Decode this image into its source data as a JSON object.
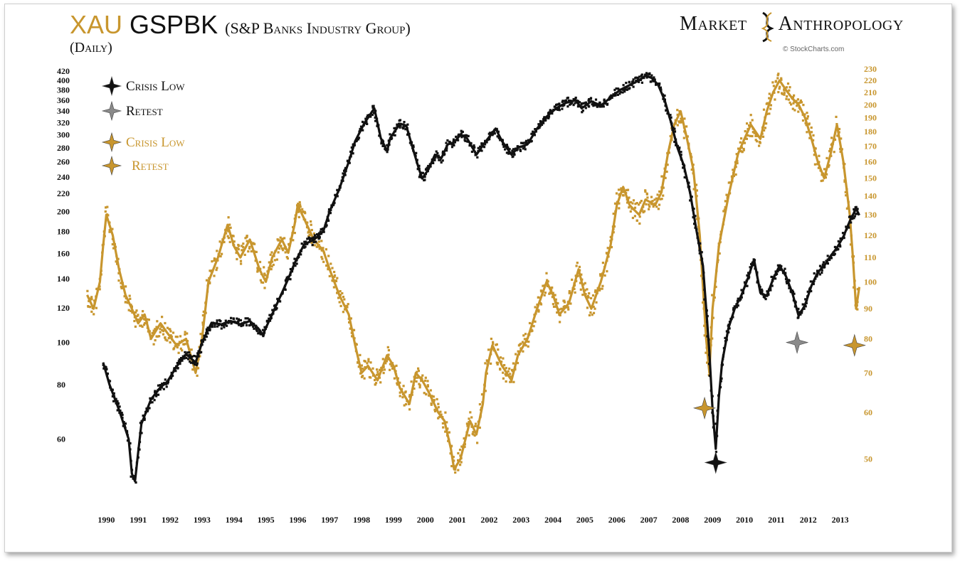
{
  "header": {
    "title_part1": "XAU",
    "title_part2": "GSPBK",
    "title_sub": "(S&P Banks Industry Group)",
    "frequency": "(Daily)",
    "brand_part1": "Market",
    "brand_part2": "Anthropology",
    "copyright": "© StockCharts.com"
  },
  "colors": {
    "gspbk": "#111111",
    "xau": "#c8962e",
    "retest_black": "#8a8a8a"
  },
  "legend": [
    {
      "label": "Crisis Low",
      "series": "GSPBK",
      "color": "#111111"
    },
    {
      "label": "Retest",
      "series": "GSPBK",
      "color": "#8a8a8a"
    },
    {
      "label": "Crisis Low",
      "series": "XAU",
      "color": "#c8962e"
    },
    {
      "label": "Retest",
      "series": "XAU",
      "color": "#c8962e"
    }
  ],
  "chart_data": {
    "type": "scatter",
    "x_axis": {
      "ticks": [
        "1990",
        "1991",
        "1992",
        "1993",
        "1994",
        "1995",
        "1996",
        "1997",
        "1998",
        "1999",
        "2000",
        "2001",
        "2002",
        "2003",
        "2004",
        "2005",
        "2006",
        "2007",
        "2008",
        "2009",
        "2010",
        "2011",
        "2012",
        "2013"
      ],
      "range": [
        1989.4,
        2013.8
      ]
    },
    "y_left": {
      "scale": "log",
      "range": [
        44,
        420
      ],
      "ticks": [
        60,
        80,
        100,
        120,
        140,
        160,
        180,
        200,
        220,
        240,
        260,
        280,
        300,
        320,
        340,
        360,
        380,
        400,
        420
      ]
    },
    "y_right": {
      "scale": "log",
      "range": [
        42,
        232
      ],
      "ticks": [
        50,
        60,
        70,
        80,
        90,
        100,
        110,
        120,
        130,
        140,
        150,
        160,
        170,
        180,
        190,
        200,
        210,
        220,
        230
      ]
    },
    "series": [
      {
        "name": "GSPBK",
        "axis": "left",
        "points": [
          [
            1990.0,
            90
          ],
          [
            1990.2,
            80
          ],
          [
            1990.5,
            70
          ],
          [
            1990.8,
            60
          ],
          [
            1990.9,
            50
          ],
          [
            1991.0,
            48
          ],
          [
            1991.1,
            56
          ],
          [
            1991.2,
            65
          ],
          [
            1991.5,
            74
          ],
          [
            1991.8,
            79
          ],
          [
            1992.0,
            81
          ],
          [
            1992.3,
            88
          ],
          [
            1992.6,
            94
          ],
          [
            1992.9,
            90
          ],
          [
            1993.1,
            100
          ],
          [
            1993.4,
            111
          ],
          [
            1993.7,
            110
          ],
          [
            1994.0,
            112
          ],
          [
            1994.3,
            110
          ],
          [
            1994.6,
            112
          ],
          [
            1994.9,
            107
          ],
          [
            1995.0,
            104
          ],
          [
            1995.2,
            112
          ],
          [
            1995.5,
            125
          ],
          [
            1995.8,
            140
          ],
          [
            1996.0,
            152
          ],
          [
            1996.3,
            168
          ],
          [
            1996.6,
            172
          ],
          [
            1996.9,
            180
          ],
          [
            1997.1,
            200
          ],
          [
            1997.4,
            225
          ],
          [
            1997.7,
            260
          ],
          [
            1997.9,
            290
          ],
          [
            1998.2,
            320
          ],
          [
            1998.5,
            345
          ],
          [
            1998.7,
            295
          ],
          [
            1998.9,
            275
          ],
          [
            1999.0,
            295
          ],
          [
            1999.3,
            318
          ],
          [
            1999.5,
            315
          ],
          [
            1999.7,
            280
          ],
          [
            1999.9,
            250
          ],
          [
            2000.0,
            238
          ],
          [
            2000.2,
            250
          ],
          [
            2000.4,
            270
          ],
          [
            2000.6,
            265
          ],
          [
            2000.8,
            285
          ],
          [
            2001.0,
            288
          ],
          [
            2001.2,
            300
          ],
          [
            2001.4,
            295
          ],
          [
            2001.7,
            270
          ],
          [
            2002.0,
            290
          ],
          [
            2002.3,
            310
          ],
          [
            2002.5,
            290
          ],
          [
            2002.8,
            270
          ],
          [
            2003.0,
            280
          ],
          [
            2003.3,
            285
          ],
          [
            2003.6,
            310
          ],
          [
            2003.9,
            330
          ],
          [
            2004.2,
            345
          ],
          [
            2004.5,
            355
          ],
          [
            2004.8,
            360
          ],
          [
            2005.0,
            345
          ],
          [
            2005.3,
            358
          ],
          [
            2005.6,
            350
          ],
          [
            2005.9,
            365
          ],
          [
            2006.2,
            380
          ],
          [
            2006.5,
            390
          ],
          [
            2006.8,
            400
          ],
          [
            2007.0,
            410
          ],
          [
            2007.2,
            405
          ],
          [
            2007.4,
            390
          ],
          [
            2007.6,
            360
          ],
          [
            2007.8,
            320
          ],
          [
            2008.0,
            280
          ],
          [
            2008.2,
            255
          ],
          [
            2008.4,
            220
          ],
          [
            2008.6,
            180
          ],
          [
            2008.8,
            150
          ],
          [
            2008.9,
            120
          ],
          [
            2009.0,
            95
          ],
          [
            2009.1,
            70
          ],
          [
            2009.2,
            57
          ],
          [
            2009.3,
            75
          ],
          [
            2009.4,
            90
          ],
          [
            2009.6,
            108
          ],
          [
            2009.8,
            120
          ],
          [
            2010.0,
            128
          ],
          [
            2010.2,
            140
          ],
          [
            2010.4,
            155
          ],
          [
            2010.6,
            130
          ],
          [
            2010.8,
            128
          ],
          [
            2011.0,
            140
          ],
          [
            2011.2,
            150
          ],
          [
            2011.4,
            142
          ],
          [
            2011.6,
            130
          ],
          [
            2011.8,
            115
          ],
          [
            2012.0,
            122
          ],
          [
            2012.2,
            135
          ],
          [
            2012.4,
            145
          ],
          [
            2012.6,
            150
          ],
          [
            2012.8,
            158
          ],
          [
            2013.0,
            165
          ],
          [
            2013.2,
            175
          ],
          [
            2013.4,
            190
          ],
          [
            2013.6,
            203
          ],
          [
            2013.7,
            196
          ]
        ]
      },
      {
        "name": "XAU",
        "axis": "right",
        "points": [
          [
            1989.5,
            95
          ],
          [
            1989.7,
            90
          ],
          [
            1989.9,
            100
          ],
          [
            1990.0,
            115
          ],
          [
            1990.1,
            130
          ],
          [
            1990.3,
            120
          ],
          [
            1990.5,
            105
          ],
          [
            1990.7,
            95
          ],
          [
            1990.9,
            90
          ],
          [
            1991.1,
            85
          ],
          [
            1991.3,
            88
          ],
          [
            1991.5,
            80
          ],
          [
            1991.8,
            85
          ],
          [
            1992.0,
            82
          ],
          [
            1992.3,
            78
          ],
          [
            1992.6,
            80
          ],
          [
            1992.9,
            70
          ],
          [
            1993.1,
            80
          ],
          [
            1993.3,
            100
          ],
          [
            1993.6,
            110
          ],
          [
            1993.9,
            125
          ],
          [
            1994.1,
            115
          ],
          [
            1994.3,
            110
          ],
          [
            1994.6,
            118
          ],
          [
            1994.9,
            105
          ],
          [
            1995.1,
            100
          ],
          [
            1995.3,
            110
          ],
          [
            1995.6,
            118
          ],
          [
            1995.8,
            112
          ],
          [
            1996.0,
            125
          ],
          [
            1996.1,
            135
          ],
          [
            1996.3,
            128
          ],
          [
            1996.6,
            118
          ],
          [
            1996.9,
            113
          ],
          [
            1997.1,
            105
          ],
          [
            1997.4,
            95
          ],
          [
            1997.7,
            88
          ],
          [
            1997.9,
            78
          ],
          [
            1998.1,
            70
          ],
          [
            1998.3,
            72
          ],
          [
            1998.6,
            68
          ],
          [
            1998.9,
            75
          ],
          [
            1999.1,
            72
          ],
          [
            1999.3,
            66
          ],
          [
            1999.6,
            62
          ],
          [
            1999.8,
            70
          ],
          [
            2000.0,
            68
          ],
          [
            2000.2,
            65
          ],
          [
            2000.5,
            60
          ],
          [
            2000.7,
            58
          ],
          [
            2000.9,
            52
          ],
          [
            2001.0,
            48
          ],
          [
            2001.2,
            50
          ],
          [
            2001.5,
            58
          ],
          [
            2001.7,
            55
          ],
          [
            2001.9,
            62
          ],
          [
            2002.0,
            70
          ],
          [
            2002.2,
            78
          ],
          [
            2002.5,
            72
          ],
          [
            2002.8,
            68
          ],
          [
            2003.0,
            75
          ],
          [
            2003.3,
            80
          ],
          [
            2003.6,
            90
          ],
          [
            2003.9,
            100
          ],
          [
            2004.1,
            95
          ],
          [
            2004.3,
            88
          ],
          [
            2004.6,
            92
          ],
          [
            2004.9,
            105
          ],
          [
            2005.1,
            95
          ],
          [
            2005.3,
            90
          ],
          [
            2005.6,
            100
          ],
          [
            2005.9,
            115
          ],
          [
            2006.1,
            135
          ],
          [
            2006.3,
            145
          ],
          [
            2006.5,
            135
          ],
          [
            2006.8,
            130
          ],
          [
            2007.0,
            138
          ],
          [
            2007.3,
            135
          ],
          [
            2007.5,
            142
          ],
          [
            2007.7,
            165
          ],
          [
            2007.9,
            185
          ],
          [
            2008.1,
            195
          ],
          [
            2008.3,
            175
          ],
          [
            2008.5,
            155
          ],
          [
            2008.7,
            120
          ],
          [
            2008.9,
            80
          ],
          [
            2009.0,
            70
          ],
          [
            2009.1,
            90
          ],
          [
            2009.3,
            115
          ],
          [
            2009.6,
            140
          ],
          [
            2009.9,
            165
          ],
          [
            2010.1,
            175
          ],
          [
            2010.3,
            185
          ],
          [
            2010.6,
            175
          ],
          [
            2010.8,
            195
          ],
          [
            2011.0,
            210
          ],
          [
            2011.2,
            220
          ],
          [
            2011.4,
            212
          ],
          [
            2011.6,
            205
          ],
          [
            2011.8,
            200
          ],
          [
            2012.0,
            190
          ],
          [
            2012.2,
            175
          ],
          [
            2012.4,
            160
          ],
          [
            2012.6,
            150
          ],
          [
            2012.8,
            165
          ],
          [
            2013.0,
            185
          ],
          [
            2013.2,
            160
          ],
          [
            2013.4,
            130
          ],
          [
            2013.5,
            110
          ],
          [
            2013.6,
            90
          ],
          [
            2013.7,
            98
          ]
        ]
      }
    ],
    "markers": [
      {
        "label": "Crisis Low",
        "series": "GSPBK",
        "x": 2009.2,
        "y": 53
      },
      {
        "label": "Retest",
        "series": "GSPBK",
        "x": 2011.75,
        "y": 100
      },
      {
        "label": "Crisis Low",
        "series": "XAU",
        "x": 2008.85,
        "y": 61
      },
      {
        "label": "Retest",
        "series": "XAU",
        "x": 2013.55,
        "y": 78
      }
    ]
  }
}
